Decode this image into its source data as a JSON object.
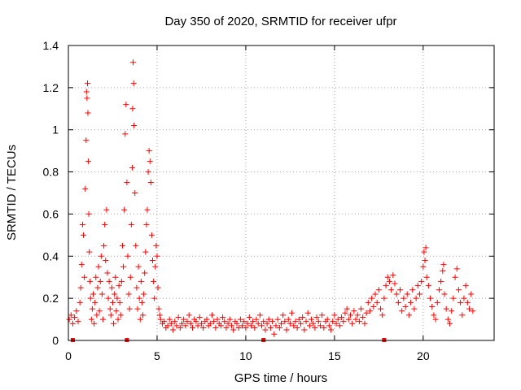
{
  "chart_data": {
    "type": "scatter",
    "title": "Day 350 of 2020, SRMTID for receiver ufpr",
    "xlabel": "GPS time / hours",
    "ylabel": "SRMTID / TECUs",
    "xlim": [
      0,
      24
    ],
    "ylim": [
      0,
      1.4
    ],
    "xticks": [
      0,
      5,
      10,
      15,
      20
    ],
    "xtick_labels": [
      "0",
      "5",
      "10",
      "15",
      "20"
    ],
    "yticks": [
      0,
      0.2,
      0.4,
      0.6,
      0.8,
      1.0,
      1.2,
      1.4
    ],
    "ytick_labels": [
      "0",
      "0.2",
      "0.4",
      "0.6",
      "0.8",
      "1",
      "1.2",
      "1.4"
    ],
    "grid": true,
    "marker": "+",
    "color": "#ff0000",
    "series": [
      {
        "name": "SRMTID",
        "points": [
          [
            0.05,
            0.1
          ],
          [
            0.15,
            0.12
          ],
          [
            0.25,
            0.08
          ],
          [
            0.35,
            0.11
          ],
          [
            0.45,
            0.14
          ],
          [
            0.55,
            0.09
          ],
          [
            0.65,
            0.18
          ],
          [
            0.7,
            0.25
          ],
          [
            0.75,
            0.36
          ],
          [
            0.8,
            0.55
          ],
          [
            0.85,
            0.5
          ],
          [
            0.9,
            0.3
          ],
          [
            0.95,
            0.72
          ],
          [
            1.0,
            0.95
          ],
          [
            1.02,
            1.18
          ],
          [
            1.05,
            1.15
          ],
          [
            1.08,
            1.22
          ],
          [
            1.1,
            1.08
          ],
          [
            1.12,
            0.85
          ],
          [
            1.15,
            0.6
          ],
          [
            1.18,
            0.42
          ],
          [
            1.22,
            0.28
          ],
          [
            1.25,
            0.2
          ],
          [
            1.3,
            0.1
          ],
          [
            1.35,
            0.15
          ],
          [
            1.4,
            0.22
          ],
          [
            1.45,
            0.08
          ],
          [
            1.5,
            0.18
          ],
          [
            1.55,
            0.3
          ],
          [
            1.6,
            0.12
          ],
          [
            1.65,
            0.25
          ],
          [
            1.7,
            0.35
          ],
          [
            1.75,
            0.14
          ],
          [
            1.8,
            0.28
          ],
          [
            1.85,
            0.4
          ],
          [
            1.9,
            0.22
          ],
          [
            1.95,
            0.1
          ],
          [
            2.0,
            0.45
          ],
          [
            2.05,
            0.55
          ],
          [
            2.1,
            0.38
          ],
          [
            2.15,
            0.62
          ],
          [
            2.2,
            0.32
          ],
          [
            2.25,
            0.2
          ],
          [
            2.3,
            0.28
          ],
          [
            2.35,
            0.15
          ],
          [
            2.4,
            0.12
          ],
          [
            2.45,
            0.25
          ],
          [
            2.5,
            0.18
          ],
          [
            2.55,
            0.08
          ],
          [
            2.6,
            0.22
          ],
          [
            2.65,
            0.3
          ],
          [
            2.7,
            0.14
          ],
          [
            2.75,
            0.2
          ],
          [
            2.8,
            0.1
          ],
          [
            2.85,
            0.26
          ],
          [
            2.9,
            0.18
          ],
          [
            2.95,
            0.12
          ],
          [
            3.0,
            0.28
          ],
          [
            3.05,
            0.45
          ],
          [
            3.1,
            0.35
          ],
          [
            3.15,
            0.62
          ],
          [
            3.2,
            0.98
          ],
          [
            3.25,
            1.12
          ],
          [
            3.3,
            0.75
          ],
          [
            3.35,
            0.4
          ],
          [
            3.4,
            0.22
          ],
          [
            3.45,
            0.15
          ],
          [
            3.5,
            0.3
          ],
          [
            3.55,
            0.55
          ],
          [
            3.6,
            0.82
          ],
          [
            3.62,
            1.1
          ],
          [
            3.65,
            1.32
          ],
          [
            3.68,
            1.22
          ],
          [
            3.7,
            1.02
          ],
          [
            3.75,
            0.7
          ],
          [
            3.8,
            0.45
          ],
          [
            3.85,
            0.25
          ],
          [
            3.9,
            0.15
          ],
          [
            3.95,
            0.35
          ],
          [
            4.0,
            0.2
          ],
          [
            4.05,
            0.1
          ],
          [
            4.1,
            0.28
          ],
          [
            4.15,
            0.18
          ],
          [
            4.2,
            0.12
          ],
          [
            4.25,
            0.22
          ],
          [
            4.3,
            0.32
          ],
          [
            4.35,
            0.42
          ],
          [
            4.4,
            0.55
          ],
          [
            4.45,
            0.62
          ],
          [
            4.5,
            0.8
          ],
          [
            4.55,
            0.9
          ],
          [
            4.6,
            0.85
          ],
          [
            4.65,
            0.75
          ],
          [
            4.7,
            0.5
          ],
          [
            4.75,
            0.38
          ],
          [
            4.8,
            0.28
          ],
          [
            4.85,
            0.2
          ],
          [
            4.9,
            0.35
          ],
          [
            4.95,
            0.45
          ],
          [
            5.0,
            0.4
          ],
          [
            5.05,
            0.25
          ],
          [
            5.1,
            0.15
          ],
          [
            5.15,
            0.12
          ],
          [
            5.2,
            0.1
          ],
          [
            5.3,
            0.08
          ],
          [
            5.4,
            0.09
          ],
          [
            5.5,
            0.06
          ],
          [
            5.6,
            0.07
          ],
          [
            5.7,
            0.1
          ],
          [
            5.8,
            0.08
          ],
          [
            5.9,
            0.05
          ],
          [
            6.0,
            0.09
          ],
          [
            6.1,
            0.07
          ],
          [
            6.2,
            0.11
          ],
          [
            6.3,
            0.06
          ],
          [
            6.4,
            0.08
          ],
          [
            6.5,
            0.1
          ],
          [
            6.6,
            0.07
          ],
          [
            6.7,
            0.09
          ],
          [
            6.8,
            0.12
          ],
          [
            6.9,
            0.08
          ],
          [
            7.0,
            0.06
          ],
          [
            7.1,
            0.1
          ],
          [
            7.2,
            0.09
          ],
          [
            7.3,
            0.07
          ],
          [
            7.4,
            0.11
          ],
          [
            7.5,
            0.08
          ],
          [
            7.6,
            0.06
          ],
          [
            7.7,
            0.09
          ],
          [
            7.8,
            0.1
          ],
          [
            7.9,
            0.07
          ],
          [
            8.0,
            0.08
          ],
          [
            8.1,
            0.12
          ],
          [
            8.2,
            0.09
          ],
          [
            8.3,
            0.06
          ],
          [
            8.4,
            0.1
          ],
          [
            8.5,
            0.08
          ],
          [
            8.6,
            0.07
          ],
          [
            8.7,
            0.11
          ],
          [
            8.8,
            0.09
          ],
          [
            8.9,
            0.06
          ],
          [
            9.0,
            0.08
          ],
          [
            9.1,
            0.1
          ],
          [
            9.2,
            0.07
          ],
          [
            9.3,
            0.05
          ],
          [
            9.4,
            0.09
          ],
          [
            9.5,
            0.08
          ],
          [
            9.6,
            0.06
          ],
          [
            9.7,
            0.1
          ],
          [
            9.8,
            0.07
          ],
          [
            9.9,
            0.09
          ],
          [
            10.0,
            0.06
          ],
          [
            10.1,
            0.08
          ],
          [
            10.2,
            0.11
          ],
          [
            10.3,
            0.07
          ],
          [
            10.4,
            0.09
          ],
          [
            10.5,
            0.06
          ],
          [
            10.6,
            0.1
          ],
          [
            10.7,
            0.08
          ],
          [
            10.8,
            0.12
          ],
          [
            10.9,
            0.07
          ],
          [
            11.0,
            0.09
          ],
          [
            11.1,
            0.05
          ],
          [
            11.2,
            0.08
          ],
          [
            11.3,
            0.1
          ],
          [
            11.4,
            0.06
          ],
          [
            11.5,
            0.09
          ],
          [
            11.6,
            0.03
          ],
          [
            11.7,
            0.07
          ],
          [
            11.8,
            0.1
          ],
          [
            11.9,
            0.06
          ],
          [
            12.0,
            0.08
          ],
          [
            12.1,
            0.12
          ],
          [
            12.2,
            0.09
          ],
          [
            12.3,
            0.05
          ],
          [
            12.4,
            0.1
          ],
          [
            12.5,
            0.08
          ],
          [
            12.6,
            0.13
          ],
          [
            12.7,
            0.07
          ],
          [
            12.8,
            0.09
          ],
          [
            12.9,
            0.06
          ],
          [
            13.0,
            0.1
          ],
          [
            13.1,
            0.08
          ],
          [
            13.2,
            0.11
          ],
          [
            13.3,
            0.05
          ],
          [
            13.4,
            0.09
          ],
          [
            13.5,
            0.13
          ],
          [
            13.6,
            0.07
          ],
          [
            13.7,
            0.1
          ],
          [
            13.8,
            0.08
          ],
          [
            13.9,
            0.06
          ],
          [
            14.0,
            0.11
          ],
          [
            14.1,
            0.09
          ],
          [
            14.2,
            0.07
          ],
          [
            14.3,
            0.12
          ],
          [
            14.4,
            0.06
          ],
          [
            14.5,
            0.09
          ],
          [
            14.6,
            0.1
          ],
          [
            14.7,
            0.07
          ],
          [
            14.8,
            0.05
          ],
          [
            14.9,
            0.09
          ],
          [
            15.0,
            0.12
          ],
          [
            15.1,
            0.08
          ],
          [
            15.2,
            0.1
          ],
          [
            15.3,
            0.07
          ],
          [
            15.4,
            0.11
          ],
          [
            15.5,
            0.09
          ],
          [
            15.6,
            0.13
          ],
          [
            15.7,
            0.15
          ],
          [
            15.8,
            0.1
          ],
          [
            15.9,
            0.12
          ],
          [
            16.0,
            0.08
          ],
          [
            16.1,
            0.14
          ],
          [
            16.2,
            0.1
          ],
          [
            16.3,
            0.12
          ],
          [
            16.4,
            0.09
          ],
          [
            16.5,
            0.15
          ],
          [
            16.6,
            0.11
          ],
          [
            16.7,
            0.08
          ],
          [
            16.8,
            0.13
          ],
          [
            16.9,
            0.18
          ],
          [
            17.0,
            0.14
          ],
          [
            17.1,
            0.2
          ],
          [
            17.2,
            0.16
          ],
          [
            17.3,
            0.22
          ],
          [
            17.4,
            0.18
          ],
          [
            17.5,
            0.24
          ],
          [
            17.6,
            0.15
          ],
          [
            17.7,
            0.12
          ],
          [
            17.8,
            0.2
          ],
          [
            17.9,
            0.26
          ],
          [
            18.0,
            0.3
          ],
          [
            18.1,
            0.28
          ],
          [
            18.2,
            0.24
          ],
          [
            18.3,
            0.31
          ],
          [
            18.4,
            0.27
          ],
          [
            18.5,
            0.22
          ],
          [
            18.6,
            0.18
          ],
          [
            18.7,
            0.24
          ],
          [
            18.8,
            0.14
          ],
          [
            18.9,
            0.2
          ],
          [
            19.0,
            0.16
          ],
          [
            19.1,
            0.22
          ],
          [
            19.2,
            0.12
          ],
          [
            19.3,
            0.18
          ],
          [
            19.4,
            0.24
          ],
          [
            19.5,
            0.15
          ],
          [
            19.6,
            0.2
          ],
          [
            19.7,
            0.26
          ],
          [
            19.8,
            0.22
          ],
          [
            19.9,
            0.28
          ],
          [
            20.0,
            0.35
          ],
          [
            20.05,
            0.42
          ],
          [
            20.1,
            0.38
          ],
          [
            20.15,
            0.44
          ],
          [
            20.2,
            0.3
          ],
          [
            20.3,
            0.26
          ],
          [
            20.4,
            0.2
          ],
          [
            20.5,
            0.16
          ],
          [
            20.6,
            0.12
          ],
          [
            20.7,
            0.1
          ],
          [
            20.8,
            0.18
          ],
          [
            20.9,
            0.24
          ],
          [
            21.0,
            0.28
          ],
          [
            21.1,
            0.33
          ],
          [
            21.15,
            0.36
          ],
          [
            21.2,
            0.22
          ],
          [
            21.3,
            0.15
          ],
          [
            21.4,
            0.1
          ],
          [
            21.5,
            0.08
          ],
          [
            21.6,
            0.14
          ],
          [
            21.7,
            0.2
          ],
          [
            21.8,
            0.3
          ],
          [
            21.9,
            0.34
          ],
          [
            22.0,
            0.24
          ],
          [
            22.1,
            0.18
          ],
          [
            22.2,
            0.12
          ],
          [
            22.3,
            0.2
          ],
          [
            22.4,
            0.26
          ],
          [
            22.5,
            0.18
          ],
          [
            22.6,
            0.15
          ],
          [
            22.7,
            0.22
          ],
          [
            22.8,
            0.14
          ]
        ]
      }
    ],
    "x_axis_markers": [
      0.25,
      3.3,
      11.0,
      17.8
    ]
  }
}
